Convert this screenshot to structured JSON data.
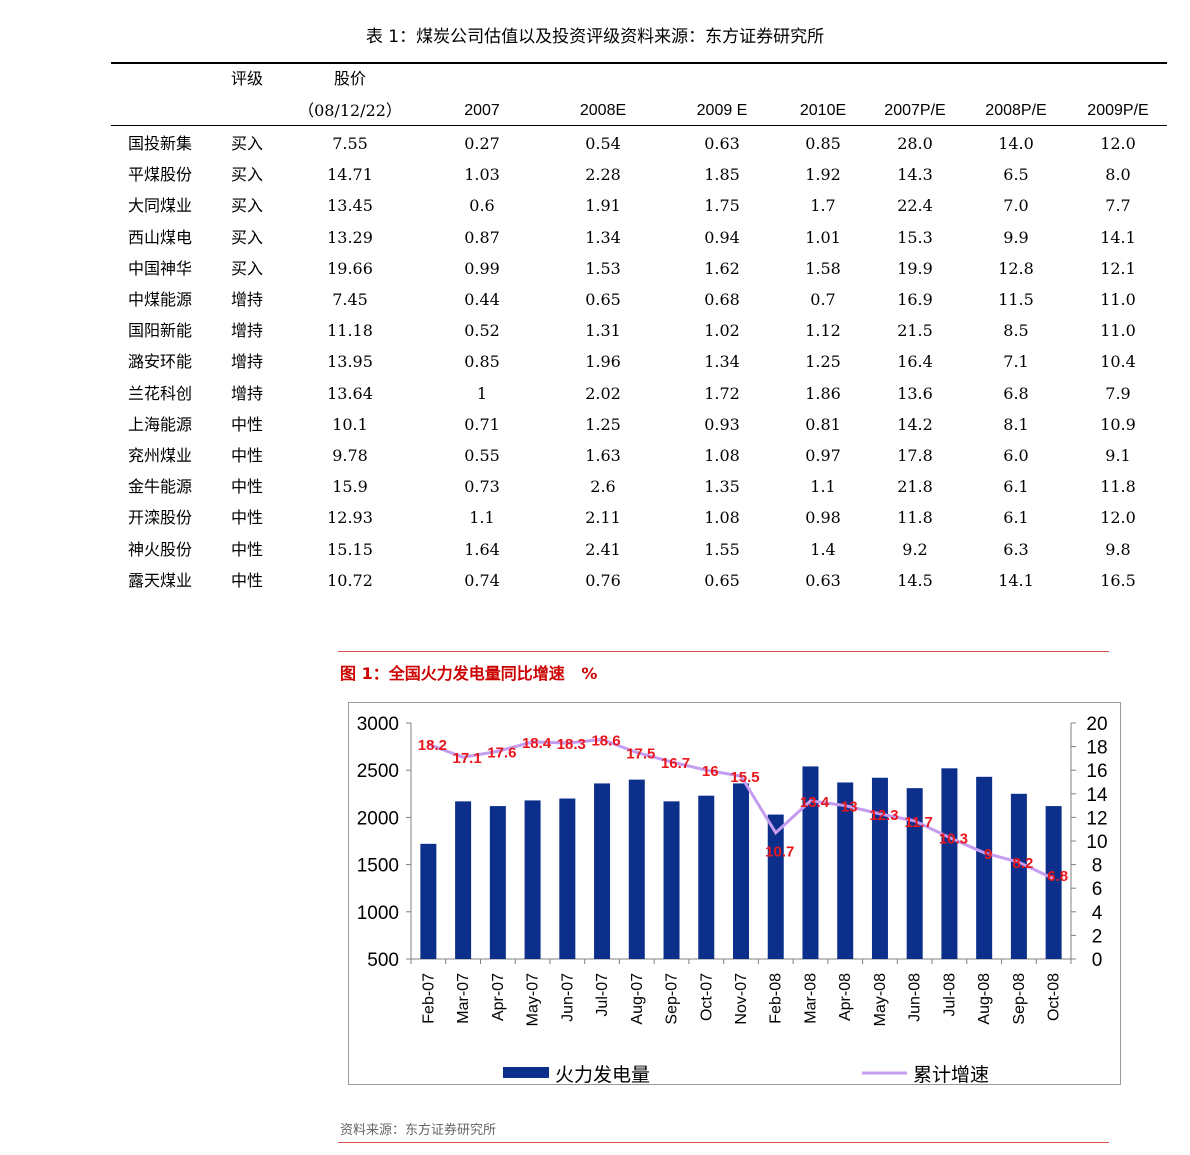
{
  "table": {
    "title": "表 1：煤炭公司估值以及投资评级资料来源：东方证券研究所",
    "headers": {
      "rating": "评级",
      "price": "股价",
      "price_date": "（08/12/22）",
      "cols": [
        "2007",
        "2008E",
        "2009 E",
        "2010E",
        "2007P/E",
        "2008P/E",
        "2009P/E"
      ]
    },
    "rows": [
      {
        "name": "国投新集",
        "rating": "买入",
        "price": "7.55",
        "v": [
          "0.27",
          "0.54",
          "0.63",
          "0.85",
          "28.0",
          "14.0",
          "12.0"
        ]
      },
      {
        "name": "平煤股份",
        "rating": "买入",
        "price": "14.71",
        "v": [
          "1.03",
          "2.28",
          "1.85",
          "1.92",
          "14.3",
          "6.5",
          "8.0"
        ]
      },
      {
        "name": "大同煤业",
        "rating": "买入",
        "price": "13.45",
        "v": [
          "0.6",
          "1.91",
          "1.75",
          "1.7",
          "22.4",
          "7.0",
          "7.7"
        ]
      },
      {
        "name": "西山煤电",
        "rating": "买入",
        "price": "13.29",
        "v": [
          "0.87",
          "1.34",
          "0.94",
          "1.01",
          "15.3",
          "9.9",
          "14.1"
        ]
      },
      {
        "name": "中国神华",
        "rating": "买入",
        "price": "19.66",
        "v": [
          "0.99",
          "1.53",
          "1.62",
          "1.58",
          "19.9",
          "12.8",
          "12.1"
        ]
      },
      {
        "name": "中煤能源",
        "rating": "增持",
        "price": "7.45",
        "v": [
          "0.44",
          "0.65",
          "0.68",
          "0.7",
          "16.9",
          "11.5",
          "11.0"
        ]
      },
      {
        "name": "国阳新能",
        "rating": "增持",
        "price": "11.18",
        "v": [
          "0.52",
          "1.31",
          "1.02",
          "1.12",
          "21.5",
          "8.5",
          "11.0"
        ]
      },
      {
        "name": "潞安环能",
        "rating": "增持",
        "price": "13.95",
        "v": [
          "0.85",
          "1.96",
          "1.34",
          "1.25",
          "16.4",
          "7.1",
          "10.4"
        ]
      },
      {
        "name": "兰花科创",
        "rating": "增持",
        "price": "13.64",
        "v": [
          "1",
          "2.02",
          "1.72",
          "1.86",
          "13.6",
          "6.8",
          "7.9"
        ]
      },
      {
        "name": "上海能源",
        "rating": "中性",
        "price": "10.1",
        "v": [
          "0.71",
          "1.25",
          "0.93",
          "0.81",
          "14.2",
          "8.1",
          "10.9"
        ]
      },
      {
        "name": "兖州煤业",
        "rating": "中性",
        "price": "9.78",
        "v": [
          "0.55",
          "1.63",
          "1.08",
          "0.97",
          "17.8",
          "6.0",
          "9.1"
        ]
      },
      {
        "name": "金牛能源",
        "rating": "中性",
        "price": "15.9",
        "v": [
          "0.73",
          "2.6",
          "1.35",
          "1.1",
          "21.8",
          "6.1",
          "11.8"
        ]
      },
      {
        "name": "开滦股份",
        "rating": "中性",
        "price": "12.93",
        "v": [
          "1.1",
          "2.11",
          "1.08",
          "0.98",
          "11.8",
          "6.1",
          "12.0"
        ]
      },
      {
        "name": "神火股份",
        "rating": "中性",
        "price": "15.15",
        "v": [
          "1.64",
          "2.41",
          "1.55",
          "1.4",
          "9.2",
          "6.3",
          "9.8"
        ]
      },
      {
        "name": "露天煤业",
        "rating": "中性",
        "price": "10.72",
        "v": [
          "0.74",
          "0.76",
          "0.65",
          "0.63",
          "14.5",
          "14.1",
          "16.5"
        ]
      }
    ]
  },
  "figure": {
    "title": "图 1：全国火力发电量同比增速   %",
    "source": "资料来源：东方证券研究所"
  },
  "chart_data": {
    "type": "bar",
    "categories": [
      "Feb-07",
      "Mar-07",
      "Apr-07",
      "May-07",
      "Jun-07",
      "Jul-07",
      "Aug-07",
      "Sep-07",
      "Oct-07",
      "Nov-07",
      "Feb-08",
      "Mar-08",
      "Apr-08",
      "May-08",
      "Jun-08",
      "Jul-08",
      "Aug-08",
      "Sep-08",
      "Oct-08"
    ],
    "series": [
      {
        "name": "火力发电量",
        "type": "bar",
        "axis": "left",
        "color": "#0d2f8c",
        "values": [
          1720,
          2170,
          2120,
          2180,
          2200,
          2360,
          2400,
          2170,
          2230,
          2360,
          2030,
          2540,
          2370,
          2420,
          2310,
          2520,
          2430,
          2250,
          2120
        ]
      },
      {
        "name": "累计增速",
        "type": "line",
        "axis": "right",
        "color": "#c49cf0",
        "values": [
          18.2,
          17.1,
          17.6,
          18.4,
          18.3,
          18.6,
          17.5,
          16.7,
          16,
          15.5,
          10.7,
          13.4,
          13,
          12.3,
          11.7,
          10.3,
          9,
          8.2,
          6.8
        ],
        "labels": [
          "18.2",
          "17.1",
          "17.6",
          "18.4",
          "18.3",
          "18.6",
          "17.5",
          "16.7",
          "16",
          "15.5",
          "10.7",
          "13.4",
          "13",
          "12.3",
          "11.7",
          "10.3",
          "9",
          "8.2",
          "6.8"
        ],
        "label_color": "#e8171b"
      }
    ],
    "y_left": {
      "min": 500,
      "max": 3000,
      "ticks": [
        "500",
        "1000",
        "1500",
        "2000",
        "2500",
        "3000"
      ]
    },
    "y_right": {
      "min": 0,
      "max": 20,
      "ticks": [
        "0",
        "2",
        "4",
        "6",
        "8",
        "10",
        "12",
        "14",
        "16",
        "18",
        "20"
      ]
    },
    "legend_position": "bottom",
    "grid": false
  }
}
